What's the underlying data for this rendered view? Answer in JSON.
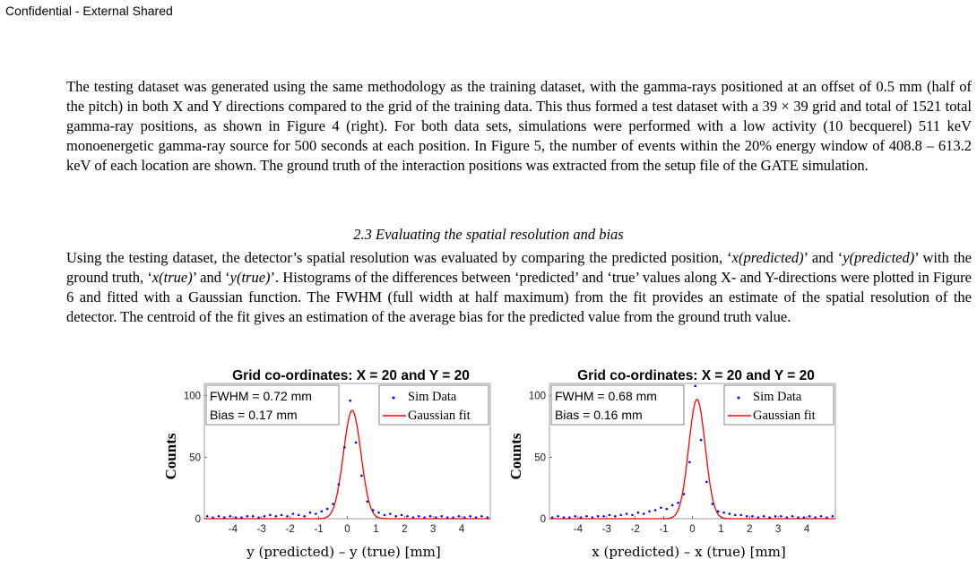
{
  "header": {
    "classification": "Confidential - External Shared"
  },
  "body": {
    "paragraph1": "The testing dataset was generated using the same methodology as the training dataset, with the gamma-rays positioned at an offset of 0.5 mm (half of the pitch) in both X and Y directions compared to the grid of the training data. This thus formed a test dataset with a 39 × 39 grid and total of 1521 total gamma-ray positions, as shown in Figure 4 (right). For both data sets, simulations were performed with a low activity (10 becquerel) 511 keV monoenergetic gamma-ray source for 500 seconds at each position. In Figure 5, the number of events within the 20% energy window of 408.8 – 613.2 keV of each location are shown. The ground truth of the interaction positions was extracted from the setup file of the GATE simulation.",
    "section_heading": "2.3 Evaluating the spatial resolution and bias",
    "paragraph2": {
      "s1": "Using the testing dataset, the detector’s spatial resolution was evaluated by comparing the predicted position, ‘",
      "t1": "x(predicted)",
      "s2": "’ and ‘",
      "t2": "y(predicted)",
      "s3": "’ with the ground truth, ‘",
      "t3": "x(true)",
      "s4": "’ and ‘",
      "t4": "y(true)",
      "s5": "’. Histograms of the differences between ‘predicted’ and ‘true’ values along X- and Y-directions were plotted in Figure 6 and fitted with a Gaussian function. The FWHM (full width at half maximum) from the fit provides an estimate of the spatial resolution of the detector. The centroid of the fit gives an estimation of the average bias for the predicted value from the ground truth value."
    }
  },
  "chart_data": [
    {
      "type": "scatter",
      "title": "Grid co-ordinates: X = 20 and Y = 20",
      "xlabel": "y (predicted) – y (true) [mm]",
      "ylabel": "Counts",
      "xlim": [
        -5,
        5
      ],
      "ylim": [
        0,
        110
      ],
      "xticks": [
        "-4",
        "-3",
        "-2",
        "-1",
        "0",
        "1",
        "2",
        "3",
        "4"
      ],
      "yticks": [
        "0",
        "50",
        "100"
      ],
      "stats": [
        "FWHM = 0.72 mm",
        "Bias = 0.17 mm"
      ],
      "legend_position": "top-right",
      "grid": false,
      "series": [
        {
          "name": "Sim Data",
          "style": "points",
          "color": "#0000ff",
          "x": [
            -4.9,
            -4.7,
            -4.5,
            -4.3,
            -4.1,
            -3.9,
            -3.7,
            -3.5,
            -3.3,
            -3.1,
            -2.9,
            -2.7,
            -2.5,
            -2.3,
            -2.1,
            -1.9,
            -1.7,
            -1.5,
            -1.3,
            -1.1,
            -0.9,
            -0.7,
            -0.5,
            -0.3,
            -0.1,
            0.1,
            0.3,
            0.5,
            0.7,
            0.9,
            1.1,
            1.3,
            1.5,
            1.7,
            1.9,
            2.1,
            2.3,
            2.5,
            2.7,
            2.9,
            3.1,
            3.3,
            3.5,
            3.7,
            3.9,
            4.1,
            4.3,
            4.5,
            4.7,
            4.9
          ],
          "y": [
            2,
            1,
            2,
            1,
            2,
            1,
            1,
            2,
            2,
            1,
            2,
            3,
            2,
            3,
            2,
            4,
            3,
            2,
            5,
            4,
            6,
            8,
            12,
            28,
            58,
            96,
            62,
            35,
            14,
            7,
            5,
            3,
            4,
            2,
            3,
            2,
            1,
            2,
            1,
            2,
            1,
            2,
            1,
            1,
            2,
            1,
            2,
            1,
            2,
            1
          ]
        },
        {
          "name": "Gaussian fit",
          "style": "line",
          "color": "#ff0000",
          "amplitude": 88,
          "mean": 0.17,
          "fwhm": 0.72
        }
      ]
    },
    {
      "type": "scatter",
      "title": "Grid co-ordinates: X = 20 and Y = 20",
      "xlabel": "x (predicted) – x (true) [mm]",
      "ylabel": "Counts",
      "xlim": [
        -5,
        5
      ],
      "ylim": [
        0,
        110
      ],
      "xticks": [
        "-4",
        "-3",
        "-2",
        "-1",
        "0",
        "1",
        "2",
        "3",
        "4"
      ],
      "yticks": [
        "0",
        "50",
        "100"
      ],
      "stats": [
        "FWHM = 0.68 mm",
        "Bias = 0.16 mm"
      ],
      "legend_position": "top-right",
      "grid": false,
      "series": [
        {
          "name": "Sim Data",
          "style": "points",
          "color": "#0000ff",
          "x": [
            -4.9,
            -4.7,
            -4.5,
            -4.3,
            -4.1,
            -3.9,
            -3.7,
            -3.5,
            -3.3,
            -3.1,
            -2.9,
            -2.7,
            -2.5,
            -2.3,
            -2.1,
            -1.9,
            -1.7,
            -1.5,
            -1.3,
            -1.1,
            -0.9,
            -0.7,
            -0.5,
            -0.3,
            -0.1,
            0.1,
            0.3,
            0.5,
            0.7,
            0.9,
            1.1,
            1.3,
            1.5,
            1.7,
            1.9,
            2.1,
            2.3,
            2.5,
            2.7,
            2.9,
            3.1,
            3.3,
            3.5,
            3.7,
            3.9,
            4.1,
            4.3,
            4.5,
            4.7,
            4.9
          ],
          "y": [
            1,
            2,
            1,
            1,
            2,
            1,
            2,
            1,
            2,
            2,
            3,
            2,
            3,
            4,
            3,
            5,
            4,
            6,
            7,
            9,
            8,
            11,
            13,
            20,
            46,
            108,
            64,
            30,
            12,
            6,
            5,
            4,
            3,
            3,
            2,
            2,
            1,
            2,
            1,
            2,
            2,
            1,
            2,
            1,
            1,
            2,
            1,
            2,
            1,
            2
          ]
        },
        {
          "name": "Gaussian fit",
          "style": "line",
          "color": "#ff0000",
          "amplitude": 97,
          "mean": 0.16,
          "fwhm": 0.68
        }
      ]
    }
  ]
}
